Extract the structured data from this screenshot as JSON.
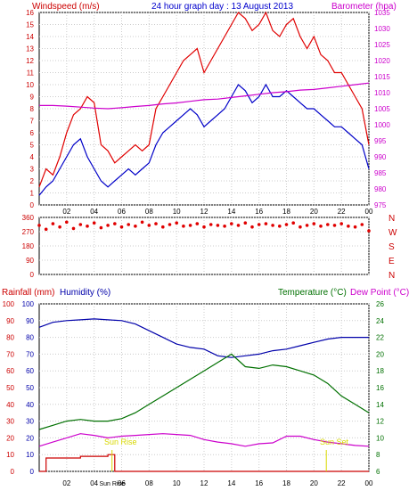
{
  "header": {
    "wind_label": "Windspeed (m/s)",
    "title": "24 hour graph day : 13 August 2013",
    "baro_label": "Barometer (hpa)"
  },
  "colors": {
    "wind": "#e00000",
    "gust": "#e00000",
    "avg": "#0000c8",
    "baro": "#cc00cc",
    "dir": "#e00000",
    "rain": "#cc0000",
    "humidity": "#0000aa",
    "temp": "#007000",
    "dew": "#cc00cc",
    "axis_text_left": "#cc0000",
    "axis_text_right": "#cc00cc",
    "grid": "#cccccc",
    "frame": "#000000",
    "sun": "#d8d800"
  },
  "chart_data": [
    {
      "id": "wind",
      "type": "line",
      "x_tick_labels": [
        "02",
        "04",
        "06",
        "08",
        "10",
        "12",
        "14",
        "16",
        "18",
        "20",
        "22",
        "00"
      ],
      "y_left_range": [
        0,
        16
      ],
      "y_left_ticks": [
        "0",
        "1",
        "2",
        "3",
        "4",
        "5",
        "6",
        "7",
        "8",
        "9",
        "10",
        "11",
        "12",
        "13",
        "14",
        "15",
        "16"
      ],
      "y_right_range": [
        975,
        1035
      ],
      "y_right_ticks": [
        "975",
        "980",
        "985",
        "990",
        "995",
        "1000",
        "1005",
        "1010",
        "1015",
        "1020",
        "1025",
        "1030",
        "1035"
      ],
      "series": [
        {
          "key": "gust",
          "axis": "left",
          "x": [
            0,
            0.5,
            1,
            1.5,
            2,
            2.5,
            3,
            3.5,
            4,
            4.5,
            5,
            5.5,
            6,
            6.5,
            7,
            7.5,
            8,
            8.5,
            9,
            9.5,
            10,
            10.5,
            11,
            11.5,
            12,
            12.5,
            13,
            13.5,
            14,
            14.5,
            15,
            15.5,
            16,
            16.5,
            17,
            17.5,
            18,
            18.5,
            19,
            19.5,
            20,
            20.5,
            21,
            21.5,
            22,
            22.5,
            23,
            23.5,
            24
          ],
          "values": [
            1.5,
            3,
            2.5,
            4,
            6,
            7.5,
            8,
            9,
            8.5,
            5,
            4.5,
            3.5,
            4,
            4.5,
            5,
            4.5,
            5,
            8,
            9,
            10,
            11,
            12,
            12.5,
            13,
            11,
            12,
            13,
            14,
            15,
            16,
            15.5,
            14.5,
            15,
            16,
            14.5,
            14,
            15,
            15.5,
            14,
            13,
            14,
            12.5,
            12,
            11,
            11,
            10,
            9,
            8,
            5
          ]
        },
        {
          "key": "avg",
          "axis": "left",
          "x": [
            0,
            0.5,
            1,
            1.5,
            2,
            2.5,
            3,
            3.5,
            4,
            4.5,
            5,
            5.5,
            6,
            6.5,
            7,
            7.5,
            8,
            8.5,
            9,
            9.5,
            10,
            10.5,
            11,
            11.5,
            12,
            12.5,
            13,
            13.5,
            14,
            14.5,
            15,
            15.5,
            16,
            16.5,
            17,
            17.5,
            18,
            18.5,
            19,
            19.5,
            20,
            20.5,
            21,
            21.5,
            22,
            22.5,
            23,
            23.5,
            24
          ],
          "values": [
            0.8,
            1.5,
            2,
            3,
            4,
            5,
            5.5,
            4,
            3,
            2,
            1.5,
            2,
            2.5,
            3,
            2.5,
            3,
            3.5,
            5,
            6,
            6.5,
            7,
            7.5,
            8,
            7.5,
            6.5,
            7,
            7.5,
            8,
            9,
            10,
            9.5,
            8.5,
            9,
            10,
            9,
            9,
            9.5,
            9,
            8.5,
            8,
            8,
            7.5,
            7,
            6.5,
            6.5,
            6,
            5.5,
            5,
            3
          ]
        },
        {
          "key": "baro",
          "axis": "right",
          "x": [
            0,
            1,
            2,
            3,
            4,
            5,
            6,
            7,
            8,
            9,
            10,
            11,
            12,
            13,
            14,
            15,
            16,
            17,
            18,
            19,
            20,
            21,
            22,
            23,
            24
          ],
          "values": [
            1006,
            1006,
            1005.8,
            1005.5,
            1005.2,
            1005,
            1005.3,
            1005.7,
            1006,
            1006.5,
            1006.8,
            1007.3,
            1007.8,
            1008,
            1008.5,
            1009,
            1009.5,
            1010,
            1010.3,
            1010.8,
            1011,
            1011.5,
            1012,
            1012.5,
            1013
          ]
        }
      ]
    },
    {
      "id": "direction",
      "type": "scatter",
      "y_range": [
        0,
        360
      ],
      "y_ticks": [
        "0",
        "90",
        "180",
        "270",
        "360"
      ],
      "compass_labels": [
        "N",
        "W",
        "S",
        "E",
        "N"
      ],
      "series": [
        {
          "key": "dir",
          "x": [
            0,
            0.5,
            1,
            1.5,
            2,
            2.5,
            3,
            3.5,
            4,
            4.5,
            5,
            5.5,
            6,
            6.5,
            7,
            7.5,
            8,
            8.5,
            9,
            9.5,
            10,
            10.5,
            11,
            11.5,
            12,
            12.5,
            13,
            13.5,
            14,
            14.5,
            15,
            15.5,
            16,
            16.5,
            17,
            17.5,
            18,
            18.5,
            19,
            19.5,
            20,
            20.5,
            21,
            21.5,
            22,
            22.5,
            23,
            23.5,
            24
          ],
          "values": [
            310,
            285,
            320,
            300,
            330,
            290,
            315,
            305,
            325,
            295,
            310,
            320,
            300,
            315,
            305,
            330,
            310,
            320,
            300,
            315,
            325,
            305,
            310,
            320,
            300,
            315,
            310,
            305,
            320,
            310,
            325,
            300,
            315,
            320,
            310,
            305,
            315,
            325,
            300,
            310,
            320,
            305,
            315,
            310,
            320,
            305,
            300,
            315,
            275
          ]
        }
      ]
    },
    {
      "id": "lower",
      "type": "line",
      "y_left_label": "Rainfall (mm)",
      "y_left2_label": "Humidity (%)",
      "y_right_label": "Temperature (°C)",
      "y_right2_label": "Dew Point (°C)",
      "y_left_range": [
        0,
        100
      ],
      "y_left_ticks": [
        "0",
        "10",
        "20",
        "30",
        "40",
        "50",
        "60",
        "70",
        "80",
        "90",
        "100"
      ],
      "y_right_range": [
        6,
        26
      ],
      "y_right_ticks": [
        "6",
        "8",
        "10",
        "12",
        "14",
        "16",
        "18",
        "20",
        "22",
        "24",
        "26"
      ],
      "x_tick_labels": [
        "02",
        "04",
        "Sun Rise",
        "06",
        "08",
        "10",
        "12",
        "14",
        "16",
        "18",
        "20",
        "22",
        "00"
      ],
      "annotations": [
        "Sun Rise",
        "Sun Set"
      ],
      "series": [
        {
          "key": "humidity",
          "axis": "left",
          "x": [
            0,
            1,
            2,
            3,
            4,
            5,
            6,
            7,
            8,
            9,
            10,
            11,
            12,
            13,
            14,
            15,
            16,
            17,
            18,
            19,
            20,
            21,
            22,
            23,
            24
          ],
          "values": [
            86,
            89,
            90,
            90.5,
            91,
            90.5,
            90,
            88,
            84,
            80,
            76,
            74,
            73,
            69,
            68,
            69,
            70,
            72,
            73,
            75,
            77,
            79,
            80,
            80,
            80
          ]
        },
        {
          "key": "temp",
          "axis": "right",
          "x": [
            0,
            1,
            2,
            3,
            4,
            5,
            6,
            7,
            8,
            9,
            10,
            11,
            12,
            13,
            14,
            15,
            16,
            17,
            18,
            19,
            20,
            21,
            22,
            23,
            24
          ],
          "values": [
            11,
            11.5,
            12,
            12.2,
            12,
            12,
            12.3,
            13,
            14,
            15,
            16,
            17,
            18,
            19,
            20,
            18.5,
            18.3,
            18.7,
            18.5,
            18,
            17.5,
            16.5,
            15,
            14,
            13
          ]
        },
        {
          "key": "dew",
          "axis": "right",
          "x": [
            0,
            1,
            2,
            3,
            4,
            5,
            6,
            7,
            8,
            9,
            10,
            11,
            12,
            13,
            14,
            15,
            16,
            17,
            18,
            19,
            20,
            21,
            22,
            23,
            24
          ],
          "values": [
            9,
            9.5,
            10,
            10.5,
            10.3,
            10,
            10.2,
            10.3,
            10.4,
            10.5,
            10.4,
            10.3,
            9.8,
            9.5,
            9.3,
            9.0,
            9.3,
            9.4,
            10.2,
            10.2,
            9.8,
            9.5,
            9.3,
            9.1,
            9.0
          ]
        },
        {
          "key": "rain",
          "axis": "left",
          "x": [
            0,
            0.5,
            3,
            5.0,
            5.5,
            6.5,
            10,
            12,
            14,
            16,
            18,
            20,
            22,
            24
          ],
          "values": [
            0,
            8,
            9,
            10,
            0,
            0,
            0,
            0,
            0,
            0,
            0,
            0,
            0,
            0
          ]
        }
      ]
    }
  ]
}
